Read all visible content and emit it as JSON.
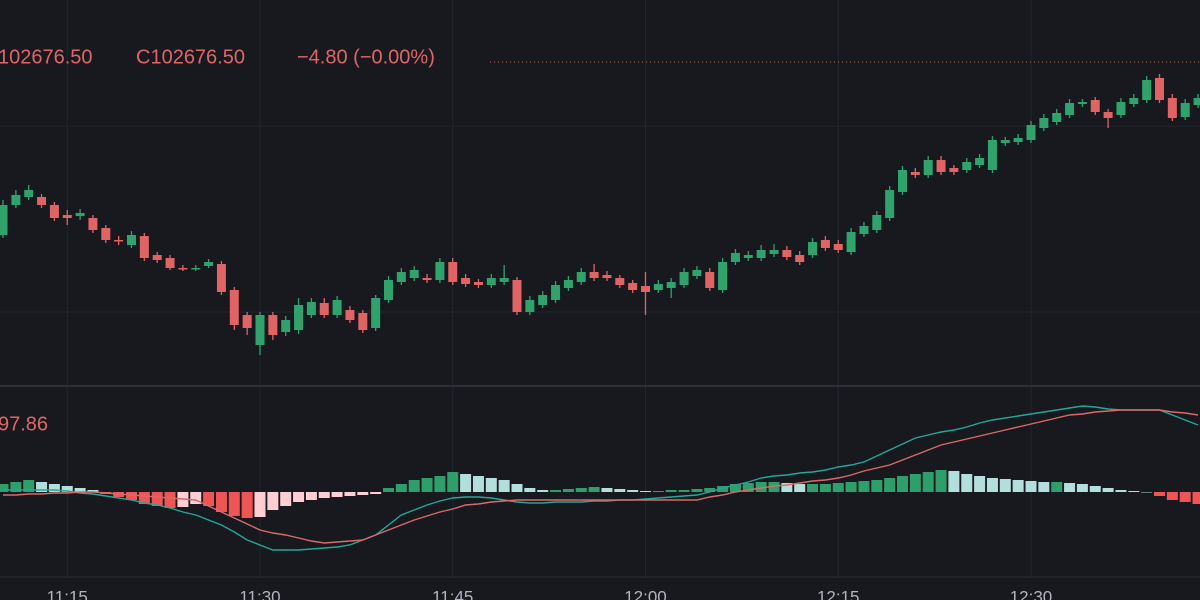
{
  "chart_data": [
    {
      "type": "candlestick",
      "header": [
        "102676.50",
        "C102676.50",
        "−4.80 (−0.00%)"
      ],
      "categories": [
        null,
        null,
        null,
        null,
        null,
        "11:15",
        null,
        null,
        null,
        null,
        null,
        null,
        null,
        null,
        null,
        null,
        null,
        null,
        null,
        null,
        "11:30",
        null,
        null,
        null,
        null,
        null,
        null,
        null,
        null,
        null,
        null,
        null,
        null,
        null,
        null,
        "11:45",
        null,
        null,
        null,
        null,
        null,
        null,
        null,
        null,
        null,
        null,
        null,
        null,
        null,
        null,
        "12:00",
        null,
        null,
        null,
        null,
        null,
        null,
        null,
        null,
        null,
        null,
        null,
        null,
        null,
        null,
        "12:15",
        null,
        null,
        null,
        null,
        null,
        null,
        null,
        null,
        null,
        null,
        null,
        null,
        null,
        null,
        "12:30",
        null,
        null,
        null,
        null,
        null,
        null,
        null,
        null,
        null,
        null,
        null,
        null,
        null
      ],
      "open": [
        102025,
        102175,
        102215,
        102215,
        102175,
        102125,
        102120,
        102110,
        102060,
        102000,
        101975,
        102020,
        101925,
        101910,
        101860,
        101855,
        101870,
        101880,
        101750,
        101625,
        101475,
        101625,
        101540,
        101550,
        101625,
        101685,
        101625,
        101650,
        101635,
        101560,
        101700,
        101790,
        101810,
        101810,
        101800,
        101890,
        101810,
        101790,
        101775,
        101790,
        101800,
        101640,
        101675,
        101700,
        101760,
        101790,
        101840,
        101825,
        101810,
        101785,
        101770,
        101750,
        101760,
        101775,
        101820,
        101840,
        101750,
        101890,
        101910,
        101910,
        101930,
        101950,
        101925,
        101925,
        102000,
        101980,
        101940,
        102030,
        102050,
        102110,
        102240,
        102340,
        102325,
        102400,
        102360,
        102350,
        102375,
        102350,
        102485,
        102490,
        102500,
        102560,
        102590,
        102625,
        102680,
        102700,
        102640,
        102625,
        102680,
        102700,
        102810,
        102710,
        102615,
        102675
      ],
      "high": [
        102200,
        102250,
        102275,
        102230,
        102190,
        102150,
        102155,
        102125,
        102075,
        102020,
        102045,
        102035,
        101940,
        101925,
        101875,
        101875,
        101905,
        101895,
        101765,
        101640,
        101640,
        101640,
        101620,
        101710,
        101710,
        101710,
        101720,
        101670,
        101650,
        101725,
        101820,
        101860,
        101870,
        101830,
        101910,
        101910,
        101830,
        101805,
        101830,
        101875,
        101815,
        101720,
        101745,
        101795,
        101820,
        101860,
        101880,
        101845,
        101825,
        101800,
        101840,
        101800,
        101810,
        101860,
        101870,
        101860,
        101910,
        101955,
        101945,
        101975,
        101980,
        101970,
        101945,
        102010,
        102020,
        102000,
        102060,
        102090,
        102145,
        102270,
        102370,
        102360,
        102420,
        102420,
        102375,
        102410,
        102430,
        102520,
        102515,
        102530,
        102595,
        102630,
        102655,
        102705,
        102705,
        102715,
        102655,
        102710,
        102730,
        102820,
        102830,
        102730,
        102705,
        102730
      ],
      "low": [
        102010,
        102160,
        102200,
        102160,
        102095,
        102075,
        102100,
        102035,
        101985,
        101975,
        101960,
        101895,
        101885,
        101850,
        101845,
        101845,
        101860,
        101725,
        101550,
        101525,
        101425,
        101500,
        101520,
        101530,
        101610,
        101610,
        101610,
        101585,
        101535,
        101545,
        101685,
        101775,
        101795,
        101785,
        101785,
        101775,
        101765,
        101760,
        101760,
        101775,
        101625,
        101625,
        101660,
        101685,
        101745,
        101775,
        101795,
        101795,
        101760,
        101735,
        101625,
        101735,
        101710,
        101760,
        101805,
        101745,
        101735,
        101875,
        101895,
        101895,
        101915,
        101900,
        101875,
        101910,
        101945,
        101935,
        101925,
        102015,
        102035,
        102095,
        102225,
        102310,
        102310,
        102325,
        102325,
        102335,
        102360,
        102335,
        102470,
        102475,
        102485,
        102545,
        102575,
        102610,
        102665,
        102625,
        102560,
        102610,
        102665,
        102685,
        102685,
        102595,
        102600,
        102660
      ],
      "close": [
        102175,
        102225,
        102250,
        102175,
        102110,
        102110,
        102135,
        102050,
        102000,
        101995,
        102025,
        101910,
        101900,
        101860,
        101855,
        101860,
        101890,
        101740,
        101575,
        101560,
        101625,
        101525,
        101600,
        101675,
        101690,
        101625,
        101700,
        101600,
        101550,
        101710,
        101800,
        101840,
        101850,
        101800,
        101890,
        101790,
        101780,
        101775,
        101810,
        101810,
        101640,
        101700,
        101725,
        101775,
        101800,
        101840,
        101810,
        101810,
        101775,
        101750,
        101740,
        101780,
        101790,
        101840,
        101850,
        101760,
        101890,
        101935,
        101925,
        101950,
        101950,
        101915,
        101890,
        101990,
        101960,
        101950,
        102040,
        102070,
        102125,
        102250,
        102350,
        102325,
        102400,
        102340,
        102340,
        102390,
        102410,
        102500,
        102500,
        102510,
        102575,
        102610,
        102635,
        102685,
        102690,
        102640,
        102610,
        102690,
        102710,
        102800,
        102700,
        102610,
        102685,
        102710
      ],
      "ylim": [
        101275,
        103200
      ],
      "up_color": "#2fa36b",
      "down_color": "#e06464",
      "header_color": "#e06666"
    },
    {
      "type": "macd",
      "label": "97.86",
      "label_color": "#e06666",
      "histogram": {
        "values": [
          8,
          10,
          12,
          10,
          8,
          6,
          4,
          2,
          -2,
          -5,
          -8,
          -12,
          -14,
          -16,
          -15,
          -12,
          -14,
          -20,
          -24,
          -26,
          -25,
          -18,
          -14,
          -10,
          -8,
          -6,
          -5,
          -4,
          -3,
          -2,
          4,
          8,
          12,
          14,
          16,
          20,
          18,
          16,
          14,
          12,
          8,
          4,
          2,
          2,
          3,
          4,
          5,
          4,
          3,
          2,
          1,
          1,
          2,
          2,
          3,
          4,
          6,
          8,
          9,
          10,
          10,
          9,
          8,
          8,
          8,
          9,
          10,
          11,
          12,
          14,
          16,
          18,
          20,
          22,
          21,
          18,
          16,
          14,
          13,
          12,
          11,
          10,
          10,
          9,
          8,
          6,
          4,
          2,
          1,
          0,
          -4,
          -8,
          -10,
          -12
        ],
        "colors": {
          "up_grow": "#2e9e6a",
          "up_fall": "#b2dfdb",
          "down_grow": "#f05555",
          "down_fall": "#ffcdd2"
        }
      },
      "lines": [
        {
          "color": "#26a69a",
          "values": [
            2,
            2,
            2,
            2,
            2,
            1,
            -1,
            -2,
            -4,
            -6,
            -8,
            -11,
            -13,
            -16,
            -20,
            -23,
            -28,
            -33,
            -40,
            -48,
            -53,
            -58,
            -58,
            -58,
            -57,
            -56,
            -55,
            -53,
            -48,
            -43,
            -33,
            -23,
            -18,
            -13,
            -9,
            -6,
            -5,
            -5,
            -6,
            -8,
            -10,
            -11,
            -11,
            -10,
            -10,
            -10,
            -9,
            -9,
            -8,
            -8,
            -7,
            -6,
            -5,
            -4,
            -3,
            0,
            4,
            7,
            10,
            14,
            16,
            17,
            19,
            20,
            22,
            25,
            27,
            30,
            36,
            42,
            48,
            54,
            57,
            60,
            62,
            65,
            69,
            72,
            74,
            76,
            78,
            80,
            82,
            84,
            86,
            85,
            83,
            82,
            82,
            82,
            82,
            77,
            72,
            67
          ]
        },
        {
          "color": "#d96a6a",
          "values": [
            -3,
            -3,
            -2,
            -2,
            -1,
            -1,
            0,
            0,
            -1,
            -2,
            -3,
            -4,
            -5,
            -6,
            -7,
            -8,
            -14,
            -20,
            -26,
            -32,
            -38,
            -41,
            -43,
            -46,
            -49,
            -51,
            -50,
            -49,
            -48,
            -43,
            -38,
            -33,
            -28,
            -24,
            -20,
            -17,
            -13,
            -12,
            -10,
            -9,
            -8,
            -8,
            -8,
            -8,
            -8,
            -8,
            -8,
            -8,
            -8,
            -8,
            -8,
            -8,
            -8,
            -8,
            -8,
            -5,
            -3,
            0,
            2,
            4,
            6,
            7,
            9,
            11,
            12,
            14,
            17,
            21,
            24,
            27,
            32,
            37,
            42,
            47,
            50,
            53,
            56,
            59,
            62,
            65,
            68,
            71,
            74,
            77,
            78,
            80,
            81,
            82,
            82,
            82,
            82,
            80,
            79,
            77
          ]
        }
      ],
      "ylim": [
        -83,
        102
      ]
    }
  ]
}
